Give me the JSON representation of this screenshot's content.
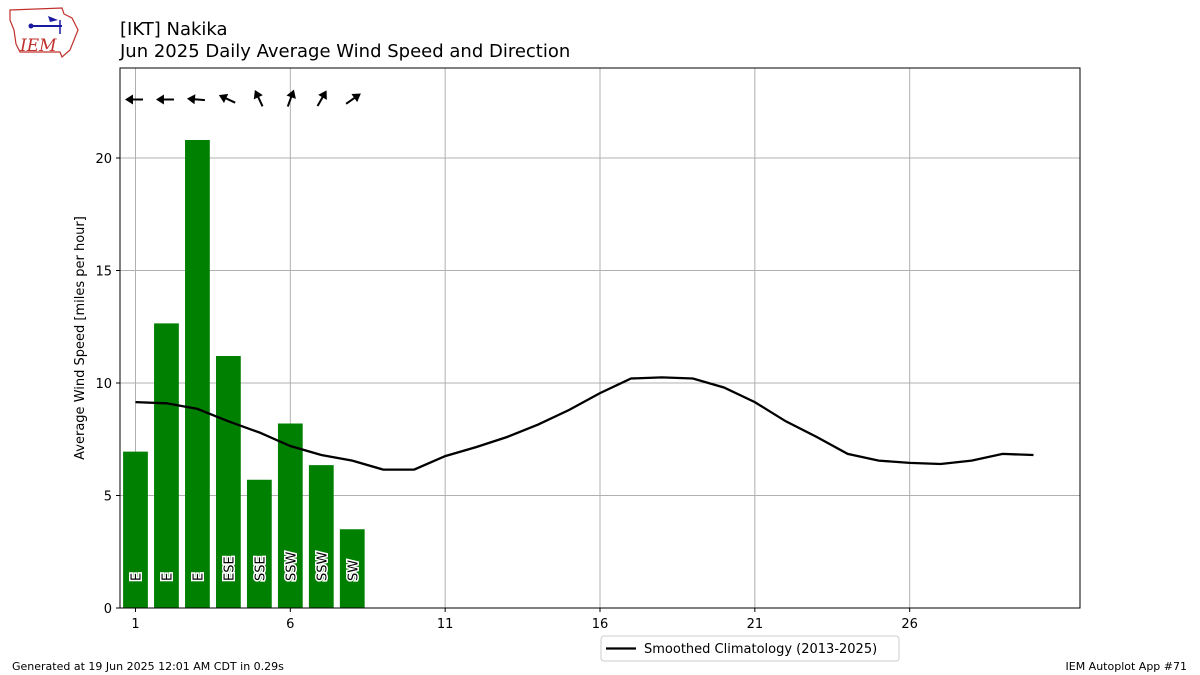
{
  "header": {
    "title_line1": "[IKT] Nakika",
    "title_line2": "Jun 2025 Daily Average Wind Speed and Direction",
    "logo_text": "IEM"
  },
  "footer": {
    "generated": "Generated at 19 Jun 2025 12:01 AM CDT in 0.29s",
    "app": "IEM Autoplot App #71"
  },
  "colors": {
    "bar": "#008000",
    "climatology": "#000000",
    "grid": "#b0b0b0"
  },
  "chart_data": {
    "type": "bar",
    "ylabel": "Average Wind Speed [miles per hour]",
    "xlabel": "",
    "xlim": [
      0.5,
      31.5
    ],
    "ylim": [
      0,
      24
    ],
    "xticks": [
      1,
      6,
      11,
      16,
      21,
      26
    ],
    "yticks": [
      0,
      5,
      10,
      15,
      20
    ],
    "grid": true,
    "legend_placement": "bottom-center",
    "bars": {
      "days": [
        1,
        2,
        3,
        4,
        5,
        6,
        7,
        8
      ],
      "values": [
        6.95,
        12.65,
        20.8,
        11.2,
        5.7,
        8.2,
        6.35,
        3.5
      ],
      "directions": [
        "E",
        "E",
        "E",
        "ESE",
        "SSE",
        "SSW",
        "SSW",
        "SW"
      ],
      "wind_from_degrees": [
        90,
        90,
        95,
        115,
        155,
        200,
        210,
        235
      ]
    },
    "series": [
      {
        "name": "Smoothed Climatology (2013-2025)",
        "type": "line",
        "x": [
          1,
          2,
          3,
          4,
          5,
          6,
          7,
          8,
          9,
          10,
          11,
          12,
          13,
          14,
          15,
          16,
          17,
          18,
          19,
          20,
          21,
          22,
          23,
          24,
          25,
          26,
          27,
          28,
          29,
          30
        ],
        "values": [
          9.15,
          9.1,
          8.85,
          8.3,
          7.8,
          7.2,
          6.8,
          6.55,
          6.15,
          6.15,
          6.75,
          7.15,
          7.6,
          8.15,
          8.8,
          9.55,
          10.2,
          10.25,
          10.2,
          9.8,
          9.15,
          8.3,
          7.6,
          6.85,
          6.55,
          6.45,
          6.4,
          6.55,
          6.85,
          6.8
        ]
      }
    ]
  }
}
